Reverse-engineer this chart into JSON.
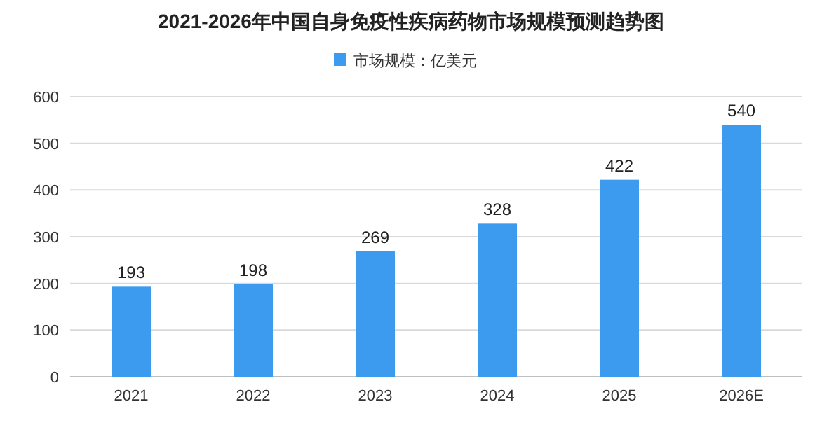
{
  "chart_data": {
    "type": "bar",
    "title": "2021-2026年中国自身免疫性疾病药物市场规模预测趋势图",
    "categories": [
      "2021",
      "2022",
      "2023",
      "2024",
      "2025",
      "2026E"
    ],
    "series": [
      {
        "name": "市场规模：亿美元",
        "color": "#3d9bef",
        "values": [
          193,
          198,
          269,
          328,
          422,
          540
        ]
      }
    ],
    "ylim": [
      0,
      600
    ],
    "yticks": [
      0,
      100,
      200,
      300,
      400,
      500,
      600
    ],
    "grid": "y",
    "legend": "top",
    "data_labels": true
  }
}
